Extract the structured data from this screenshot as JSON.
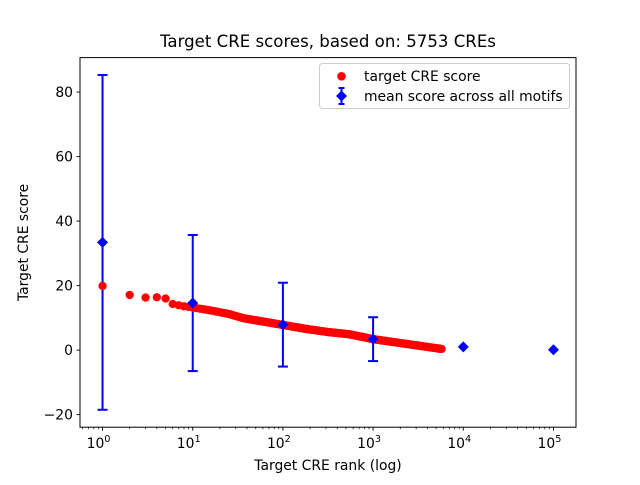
{
  "chart_data": {
    "type": "scatter",
    "title": "Target CRE scores, based on: 5753 CREs",
    "xlabel": "Target CRE rank (log)",
    "ylabel": "Target CRE score",
    "xscale": "log",
    "xlim_log10": [
      -0.25,
      5.25
    ],
    "ylim": [
      -23.9,
      90.7
    ],
    "xtick_base": "10",
    "xtick_exponents": [
      0,
      1,
      2,
      3,
      4,
      5
    ],
    "yticks": [
      -20,
      0,
      20,
      40,
      60,
      80
    ],
    "ytick_labels": [
      "−20",
      "0",
      "20",
      "40",
      "60",
      "80"
    ],
    "grid": false,
    "legend_position": "upper right",
    "series": [
      {
        "name": "target CRE score",
        "marker": "circle",
        "color": "#ff0000",
        "n_points": 5753,
        "description": "score of each target CRE vs its rank (ranks 1..5753), dense monotonically decreasing band",
        "curve_anchors_log10rank_score": [
          [
            0,
            19.9
          ],
          [
            0.301,
            17.1
          ],
          [
            0.477,
            16.3
          ],
          [
            0.602,
            16.4
          ],
          [
            0.699,
            16.0
          ],
          [
            0.778,
            14.3
          ],
          [
            0.9,
            13.6
          ],
          [
            1.0,
            13.2
          ],
          [
            1.2,
            12.3
          ],
          [
            1.4,
            11.2
          ],
          [
            1.56,
            9.9
          ],
          [
            1.75,
            9.0
          ],
          [
            2.0,
            7.8
          ],
          [
            2.25,
            6.6
          ],
          [
            2.5,
            5.6
          ],
          [
            2.74,
            4.9
          ],
          [
            3.0,
            3.4
          ],
          [
            3.25,
            2.4
          ],
          [
            3.5,
            1.4
          ],
          [
            3.76,
            0.35
          ]
        ]
      },
      {
        "name": "mean score across all motifs",
        "marker": "diamond",
        "color": "#0000ff",
        "x": [
          1,
          10,
          100,
          1000,
          10000,
          100000
        ],
        "y": [
          33.4,
          14.6,
          7.9,
          3.4,
          1.0,
          0.1
        ],
        "yerr": [
          51.9,
          21.1,
          13.0,
          6.8,
          0.6,
          0.3
        ]
      }
    ]
  },
  "legend": {
    "items": [
      {
        "label": "target CRE score",
        "marker": "circle",
        "color": "#ff0000"
      },
      {
        "label": "mean score across all motifs",
        "marker": "diamond-errorbar",
        "color": "#0000ff"
      }
    ]
  },
  "colors": {
    "red": "#ff0000",
    "blue": "#0000ff",
    "axis": "#000000",
    "legend_border": "#cccccc",
    "background": "#ffffff"
  }
}
